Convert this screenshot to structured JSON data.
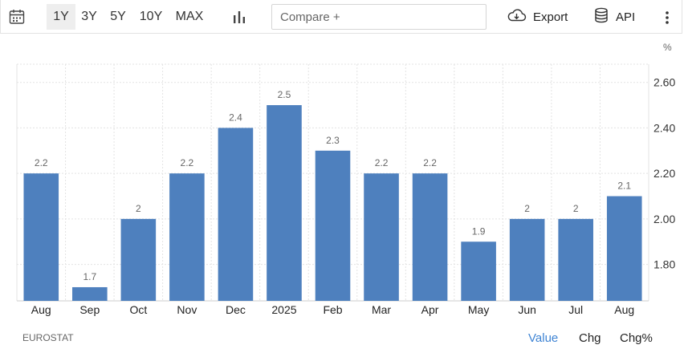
{
  "toolbar": {
    "ranges": [
      "1Y",
      "3Y",
      "5Y",
      "10Y",
      "MAX"
    ],
    "active_range": "1Y",
    "compare_placeholder": "Compare +",
    "export_label": "Export",
    "api_label": "API"
  },
  "icons": {
    "calendar": "calendar-icon",
    "chart_type": "bar-chart-icon",
    "export": "cloud-download-icon",
    "api": "database-icon",
    "more": "more-vertical-icon"
  },
  "unit_label": "%",
  "source": "EUROSTAT",
  "view_modes": [
    "Value",
    "Chg",
    "Chg%"
  ],
  "active_view": "Value",
  "colors": {
    "bar": "#4e80be",
    "active_view": "#3f84d4",
    "grid": "#e3e3e3"
  },
  "chart_data": {
    "type": "bar",
    "categories": [
      "Aug",
      "Sep",
      "Oct",
      "Nov",
      "Dec",
      "2025",
      "Feb",
      "Mar",
      "Apr",
      "May",
      "Jun",
      "Jul",
      "Aug"
    ],
    "values": [
      2.2,
      1.7,
      2,
      2.2,
      2.4,
      2.5,
      2.3,
      2.2,
      2.2,
      1.9,
      2,
      2,
      2.1
    ],
    "value_labels": [
      "2.2",
      "1.7",
      "2",
      "2.2",
      "2.4",
      "2.5",
      "2.3",
      "2.2",
      "2.2",
      "1.9",
      "2",
      "2",
      "2.1"
    ],
    "y_ticks": [
      "1.80",
      "2.00",
      "2.20",
      "2.40",
      "2.60"
    ],
    "ylim": [
      1.64,
      2.68
    ],
    "y_axis_side": "right",
    "grid": true,
    "title": "",
    "xlabel": "",
    "ylabel": ""
  }
}
